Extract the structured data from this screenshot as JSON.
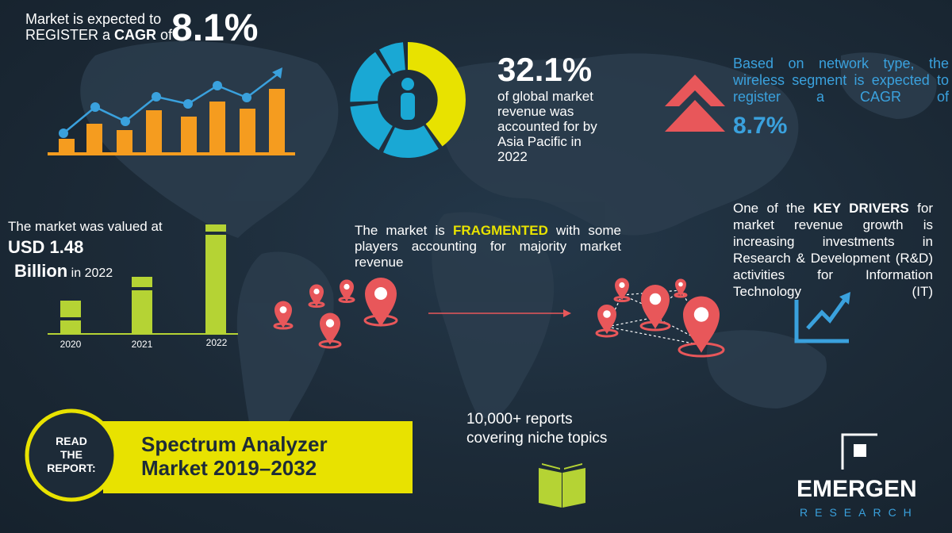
{
  "colors": {
    "background": "#1c2a37",
    "bar_orange": "#f59c1f",
    "bar_green": "#b5d334",
    "accent_yellow": "#e8e200",
    "accent_blue": "#3aa1dd",
    "donut_cyan": "#1aa8d4",
    "pin_coral": "#e8575a",
    "text": "#ffffff"
  },
  "cagr": {
    "intro_line1": "Market is expected to",
    "intro_line2_a": "REGISTER a ",
    "intro_line2_b": "CAGR",
    "intro_line2_c": " of",
    "value": "8.1%"
  },
  "asia_pacific": {
    "share": "32.1%",
    "line1": "of global market",
    "line2": "revenue was",
    "line3": "accounted for by",
    "line4": "Asia Pacific in",
    "line5": "2022",
    "share_fraction": 0.321
  },
  "wireless": {
    "text": "Based on network type, the wireless segment is expected to register a CAGR of",
    "value": "8.7%"
  },
  "market_value": {
    "line1": "The market was valued at",
    "line2": "USD 1.48",
    "line3": "Billion",
    "line3_suffix": " in 2022"
  },
  "value_chart": {
    "years": [
      "2020",
      "2021",
      "2022"
    ]
  },
  "fragmented": {
    "pre": "The market is ",
    "highlight": "FRAGMENTED",
    "post": " with some players accounting for majority market revenue"
  },
  "key_drivers": {
    "pre": "One of the ",
    "highlight": "KEY DRIVERS",
    "post": " for market revenue growth is increasing investments in Research & Development (R&D) activities for Information Technology (IT)"
  },
  "reports": {
    "line1": "10,000+ reports",
    "line2": "covering niche topics"
  },
  "read_report": {
    "line1": "READ",
    "line2": "THE",
    "line3": "REPORT:",
    "title_line1": "Spectrum Analyzer",
    "title_line2": "Market 2019–2032"
  },
  "brand": {
    "name": "EMERGEN",
    "sub": "RESEARCH"
  }
}
